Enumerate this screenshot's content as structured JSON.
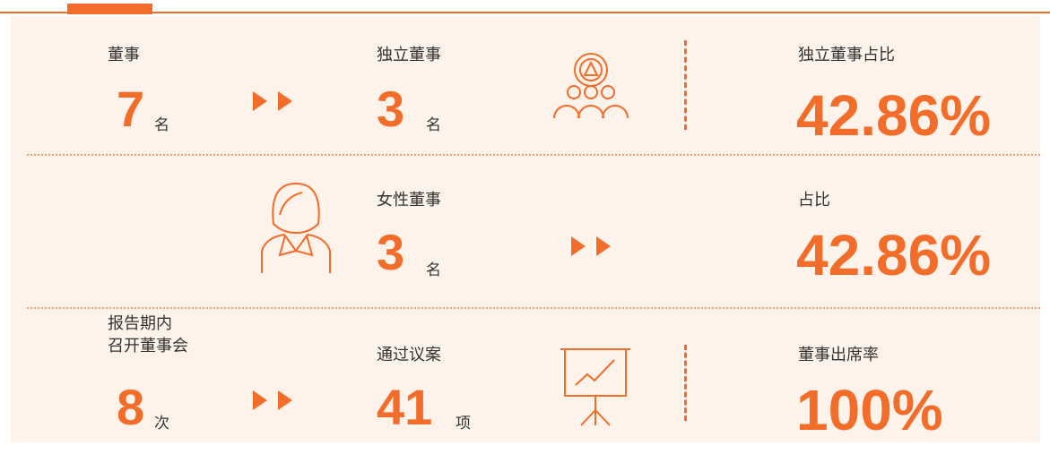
{
  "rows": [
    {
      "left": {
        "label": "董事",
        "value": 7,
        "unit": "名"
      },
      "middle": {
        "label": "独立董事",
        "value": 3,
        "unit": "名"
      },
      "right": {
        "label": "独立董事占比",
        "value": "42.86%"
      }
    },
    {
      "middle": {
        "label": "女性董事",
        "value": 3,
        "unit": "名"
      },
      "right": {
        "label": "占比",
        "value": "42.86%"
      }
    },
    {
      "left": {
        "label": [
          "报告期内",
          "召开董事会"
        ],
        "value": 8,
        "unit": "次"
      },
      "middle": {
        "label": "通过议案",
        "value": 41,
        "unit": "项"
      },
      "right": {
        "label": "董事出席率",
        "value": "100%"
      }
    }
  ]
}
